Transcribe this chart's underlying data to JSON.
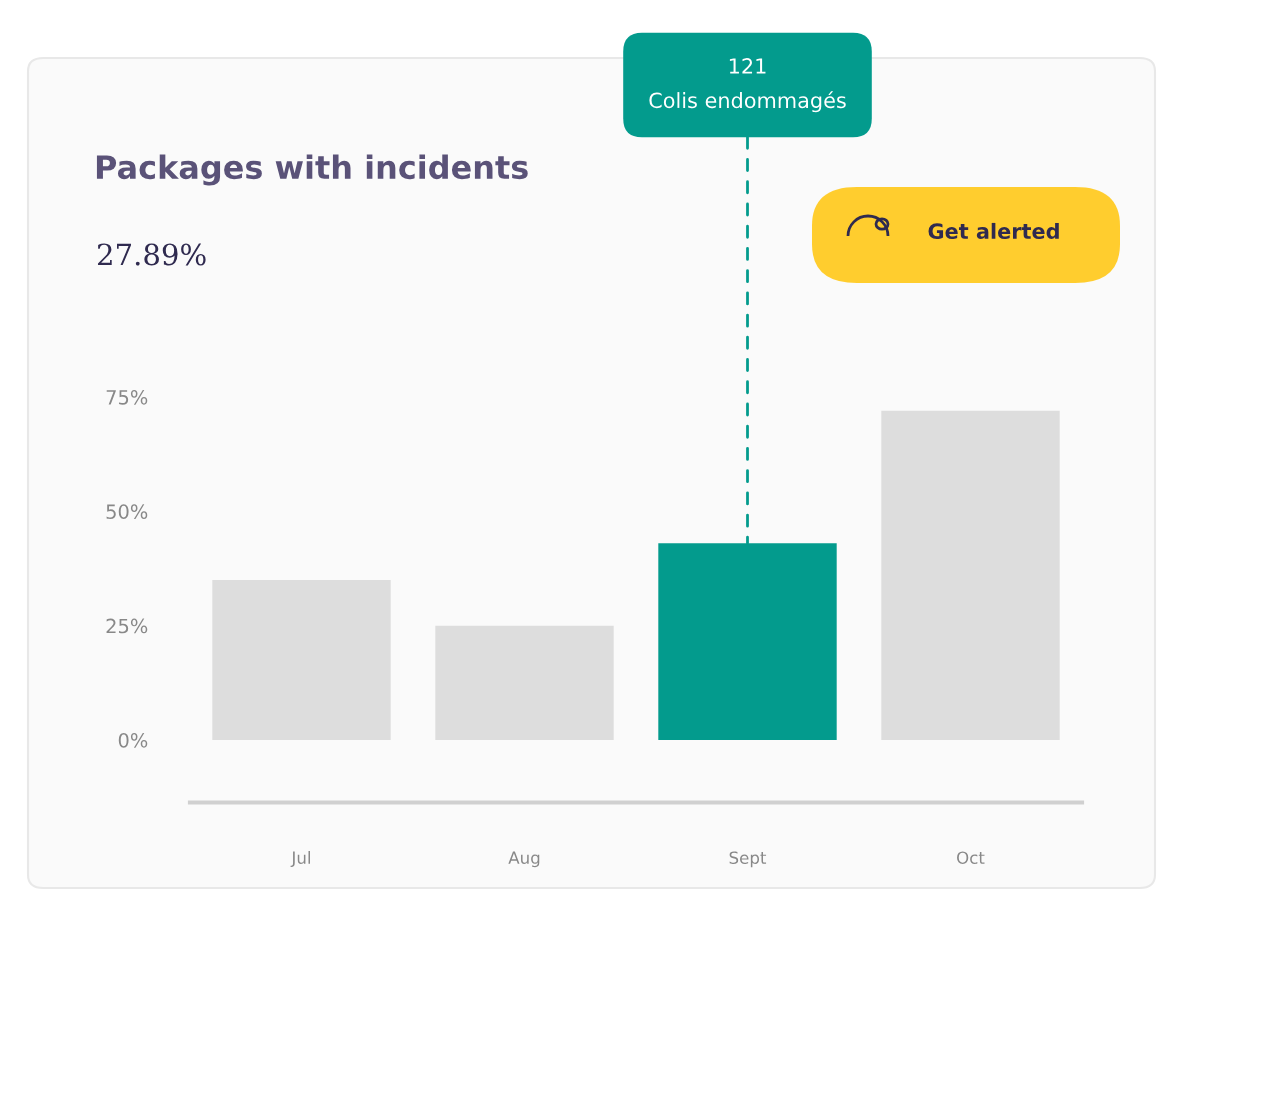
{
  "chart_data": {
    "type": "bar",
    "title": "Packages with incidents",
    "subtitle": "27.89%",
    "categories": [
      "Jul",
      "Aug",
      "Sept",
      "Oct"
    ],
    "values": [
      35,
      25,
      43,
      72
    ],
    "colors": [
      "#dddddd",
      "#dddddd",
      "#039b8d",
      "#dddddd"
    ],
    "ylim": [
      0,
      75
    ],
    "yticks": [
      {
        "value": 0,
        "label": "0%"
      },
      {
        "value": 25,
        "label": "25%"
      },
      {
        "value": 50,
        "label": "50%"
      },
      {
        "value": 75,
        "label": "75%"
      }
    ],
    "annotations": [
      {
        "text": "121\nColis endommagés",
        "x": "Sept",
        "y": 43
      },
      "Get alerted"
    ]
  }
}
